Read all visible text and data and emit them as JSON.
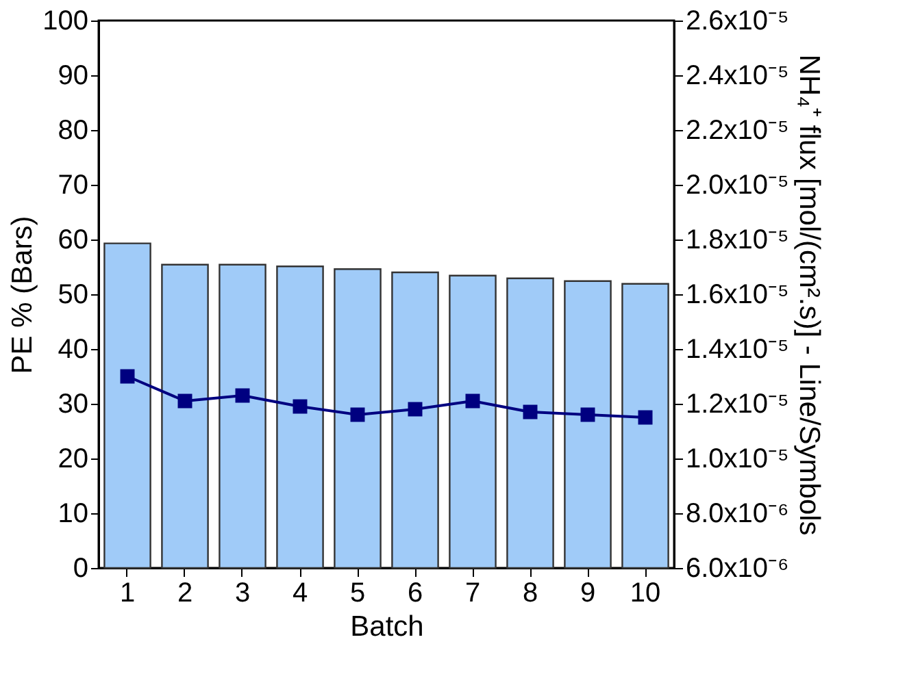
{
  "chart_data": {
    "type": "bar",
    "xlabel": "Batch",
    "ylabel": "PE % (Bars)",
    "y2label": "NH₄⁺ flux [mol/(cm².s)] - Line/Symbols",
    "categories": [
      "1",
      "2",
      "3",
      "4",
      "5",
      "6",
      "7",
      "8",
      "9",
      "10"
    ],
    "series": [
      {
        "color": "#a0cbf8",
        "values": [
          59.3,
          55.4,
          55.4,
          55.1,
          54.6,
          54.0,
          53.4,
          52.9,
          52.4,
          51.9
        ]
      },
      {
        "type": "line",
        "axis": "y2",
        "color": "#000080",
        "marker": "square",
        "line_style": "solid",
        "values": [
          1.3e-05,
          1.21e-05,
          1.23e-05,
          1.19e-05,
          1.16e-05,
          1.18e-05,
          1.21e-05,
          1.17e-05,
          1.16e-05,
          1.15e-05
        ]
      }
    ],
    "ylim": [
      0,
      100
    ],
    "yticks": [
      0,
      10,
      20,
      30,
      40,
      50,
      60,
      70,
      80,
      90,
      100
    ],
    "y2lim": [
      6e-06,
      2.6e-05
    ],
    "y2ticks": [
      {
        "value": 6e-06,
        "label": "6.0x10⁻⁶"
      },
      {
        "value": 8e-06,
        "label": "8.0x10⁻⁶"
      },
      {
        "value": 1e-05,
        "label": "1.0x10⁻⁵"
      },
      {
        "value": 1.2e-05,
        "label": "1.2x10⁻⁵"
      },
      {
        "value": 1.4e-05,
        "label": "1.4x10⁻⁵"
      },
      {
        "value": 1.6e-05,
        "label": "1.6x10⁻⁵"
      },
      {
        "value": 1.8e-05,
        "label": "1.8x10⁻⁵"
      },
      {
        "value": 2e-05,
        "label": "2.0x10⁻⁵"
      },
      {
        "value": 2.2e-05,
        "label": "2.2x10⁻⁵"
      },
      {
        "value": 2.4e-05,
        "label": "2.4x10⁻⁵"
      },
      {
        "value": 2.6e-05,
        "label": "2.6x10⁻⁵"
      }
    ],
    "grid": false
  }
}
